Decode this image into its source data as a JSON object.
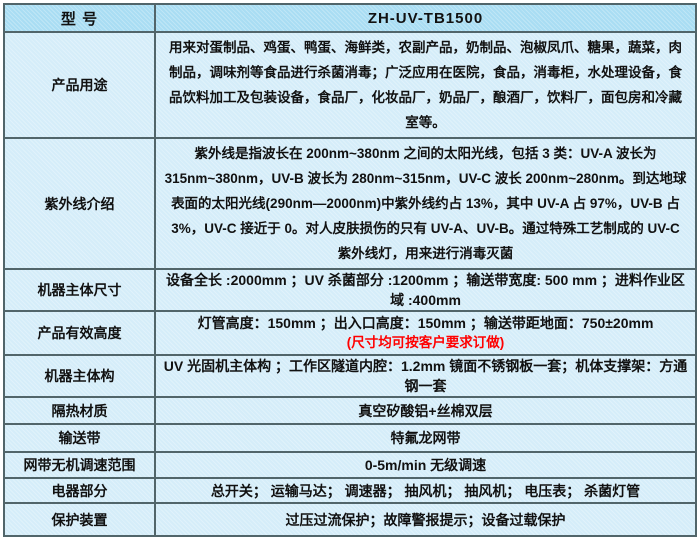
{
  "spec_table": {
    "model_label": "型 号",
    "model_value": "ZH-UV-TB1500",
    "rows": [
      {
        "label": "产品用途",
        "value": "用来对蛋制品、鸡蛋、鸭蛋、海鲜类，农副产品，奶制品、泡椒凤爪、糖果，蔬菜，肉制品，调味剂等食品进行杀菌消毒；广泛应用在医院，食品，消毒柜，水处理设备，食品饮料加工及包装设备，食品厂，化妆品厂，奶品厂，酿酒厂，饮料厂，面包房和冷藏室等。"
      },
      {
        "label": "紫外线介绍",
        "value": "紫外线是指波长在 200nm~380nm 之间的太阳光线，包括 3 类：UV-A 波长为 315nm~380nm，UV-B 波长为 280nm~315nm，UV-C 波长 200nm~280nm。到达地球表面的太阳光线(290nm—2000nm)中紫外线约占 13%，其中 UV-A 占 97%，UV-B 占 3%，UV-C 接近于 0。对人皮肤损伤的只有 UV-A、UV-B。通过特殊工艺制成的 UV-C 紫外线灯，用来进行消毒灭菌"
      },
      {
        "label": "机器主体尺寸",
        "value": "设备全长 :2000mm ；UV 杀菌部分 :1200mm ；输送带宽度: 500 mm ；进料作业区域 :400mm"
      },
      {
        "label": "产品有效高度",
        "value": "灯管高度：150mm ；出入口高度：150mm ；输送带距地面：750±20mm",
        "note": "(尺寸均可按客户要求订做)"
      },
      {
        "label": "机器主体构",
        "value": "UV 光固机主体构 ；工作区隧道内腔：1.2mm 镜面不锈钢板一套；机体支撑架：方通钢一套"
      },
      {
        "label": "隔热材质",
        "value": "真空矽酸铝+丝棉双层"
      },
      {
        "label": "输送带",
        "value": "特氟龙网带"
      },
      {
        "label": "网带无机调速范围",
        "value": "0-5m/min 无级调速"
      },
      {
        "label": "电器部分",
        "value": "总开关； 运输马达； 调速器； 抽风机； 抽风机； 电压表； 杀菌灯管"
      },
      {
        "label": "保护装置",
        "value": "过压过流保护；故障警报提示；设备过载保护"
      }
    ]
  },
  "colors": {
    "header_bg": "#a9ddf3",
    "row_bg": "#d5edf9",
    "border": "#51656a",
    "text": "#111111",
    "note_red": "#ff0000"
  }
}
